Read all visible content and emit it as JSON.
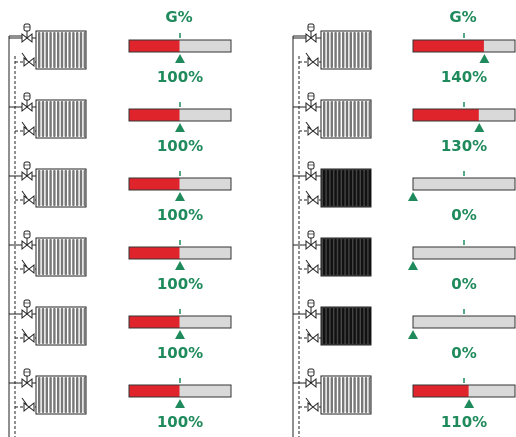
{
  "header_label": "G%",
  "colors": {
    "fill": "#e0242c",
    "track": "#d9d9d9",
    "outline": "#333333",
    "marker": "#1f8a5b",
    "pipe": "#222222"
  },
  "columns": [
    {
      "header": "G%",
      "rows": [
        {
          "value": 100,
          "label": "100%",
          "radiator_style": "light"
        },
        {
          "value": 100,
          "label": "100%",
          "radiator_style": "light"
        },
        {
          "value": 100,
          "label": "100%",
          "radiator_style": "light"
        },
        {
          "value": 100,
          "label": "100%",
          "radiator_style": "light"
        },
        {
          "value": 100,
          "label": "100%",
          "radiator_style": "light"
        },
        {
          "value": 100,
          "label": "100%",
          "radiator_style": "light"
        }
      ]
    },
    {
      "header": "G%",
      "rows": [
        {
          "value": 140,
          "label": "140%",
          "radiator_style": "light"
        },
        {
          "value": 130,
          "label": "130%",
          "radiator_style": "light"
        },
        {
          "value": 0,
          "label": "0%",
          "radiator_style": "dark"
        },
        {
          "value": 0,
          "label": "0%",
          "radiator_style": "dark"
        },
        {
          "value": 0,
          "label": "0%",
          "radiator_style": "dark"
        },
        {
          "value": 110,
          "label": "110%",
          "radiator_style": "light"
        }
      ]
    }
  ],
  "scale": {
    "max": 200,
    "reference": 100
  }
}
